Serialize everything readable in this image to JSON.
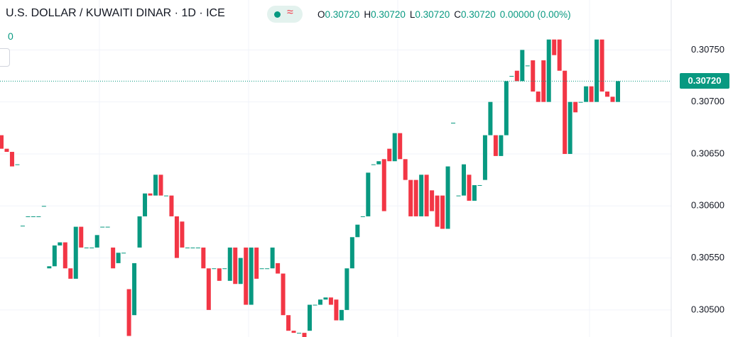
{
  "chart_data": {
    "type": "candlestick",
    "title": "U.S. DOLLAR / KUWAITI DINAR · 1D · ICE",
    "legend": {
      "o_label": "O",
      "o": "0.30720",
      "h_label": "H",
      "h": "0.30720",
      "l_label": "L",
      "l": "0.30720",
      "c_label": "C",
      "c": "0.30720",
      "change": "0.00000 (0.00%)"
    },
    "volume": "0",
    "last_price": {
      "value": 0.3072,
      "label": "0.30720"
    },
    "up_color": "#089981",
    "down_color": "#f23645",
    "ylim": [
      0.30474,
      0.30798
    ],
    "yticks": [
      {
        "value": 0.305,
        "label": "0.30500"
      },
      {
        "value": 0.3055,
        "label": "0.30550"
      },
      {
        "value": 0.306,
        "label": "0.30600"
      },
      {
        "value": 0.3065,
        "label": "0.30650"
      },
      {
        "value": 0.307,
        "label": "0.30700"
      },
      {
        "value": 0.3075,
        "label": "0.30750"
      }
    ],
    "grid": true,
    "open": [
      0.30668,
      0.30655,
      0.30652,
      0.3064,
      0.30581,
      0.3059,
      0.3059,
      0.3059,
      0.306,
      0.3054,
      0.30542,
      0.30562,
      0.30565,
      0.3054,
      0.3053,
      0.3058,
      0.3056,
      0.3056,
      0.3056,
      0.3058,
      0.3058,
      0.3056,
      0.30545,
      0.30555,
      0.3052,
      0.30495,
      0.3056,
      0.3059,
      0.30612,
      0.3061,
      0.3063,
      0.3061,
      0.3061,
      0.3059,
      0.30585,
      0.3056,
      0.3056,
      0.3056,
      0.3056,
      0.3054,
      0.3054,
      0.3054,
      0.3054,
      0.30528,
      0.3056,
      0.30525,
      0.3056,
      0.30505,
      0.3056,
      0.3054,
      0.3054,
      0.3054,
      0.30545,
      0.30535,
      0.30495,
      0.3048,
      0.30478,
      0.30478,
      0.3048,
      0.30505,
      0.30505,
      0.3051,
      0.30512,
      0.3051,
      0.3049,
      0.305,
      0.3054,
      0.3057,
      0.3059,
      0.3059,
      0.3064,
      0.3064,
      0.30645,
      0.30655,
      0.30643,
      0.3067,
      0.30645,
      0.30625,
      0.30625,
      0.3059,
      0.3063,
      0.30615,
      0.3061,
      0.3061,
      0.30578,
      0.3068,
      0.3061,
      0.3061,
      0.3063,
      0.30605,
      0.3062,
      0.30625,
      0.30668,
      0.30668,
      0.30648,
      0.30668,
      0.30725,
      0.3073,
      0.3072,
      0.30735,
      0.3074,
      0.3071,
      0.3074,
      0.307,
      0.3076,
      0.3076,
      0.3073,
      0.3065,
      0.307,
      0.307,
      0.307,
      0.30715,
      0.307,
      0.3076,
      0.3071,
      0.30705,
      0.307
    ],
    "close": [
      0.30655,
      0.30652,
      0.30638,
      0.3064,
      0.30581,
      0.3059,
      0.3059,
      0.3059,
      0.306,
      0.30542,
      0.30562,
      0.30565,
      0.3054,
      0.3053,
      0.3058,
      0.3056,
      0.3056,
      0.3056,
      0.30572,
      0.3058,
      0.3058,
      0.3054,
      0.30555,
      0.30555,
      0.30475,
      0.30545,
      0.3059,
      0.30612,
      0.3061,
      0.3063,
      0.3061,
      0.3061,
      0.3059,
      0.3055,
      0.3056,
      0.3056,
      0.3056,
      0.3056,
      0.3054,
      0.305,
      0.3054,
      0.30528,
      0.3054,
      0.3056,
      0.30525,
      0.3055,
      0.30505,
      0.3056,
      0.3053,
      0.3054,
      0.3054,
      0.3056,
      0.30535,
      0.30495,
      0.3048,
      0.30478,
      0.30478,
      0.3047,
      0.30505,
      0.30505,
      0.3051,
      0.30512,
      0.30505,
      0.3049,
      0.305,
      0.3054,
      0.3057,
      0.30582,
      0.3059,
      0.30632,
      0.3064,
      0.30643,
      0.30595,
      0.30643,
      0.3067,
      0.30645,
      0.30625,
      0.3059,
      0.3059,
      0.3063,
      0.3059,
      0.30595,
      0.3058,
      0.30578,
      0.30638,
      0.3068,
      0.3061,
      0.3064,
      0.30605,
      0.3062,
      0.3062,
      0.30668,
      0.307,
      0.30648,
      0.30668,
      0.3072,
      0.30725,
      0.3072,
      0.3075,
      0.30735,
      0.3071,
      0.307,
      0.307,
      0.3076,
      0.30745,
      0.3073,
      0.3065,
      0.307,
      0.3069,
      0.307,
      0.30715,
      0.307,
      0.3076,
      0.3071,
      0.30705,
      0.307,
      0.3072
    ]
  }
}
